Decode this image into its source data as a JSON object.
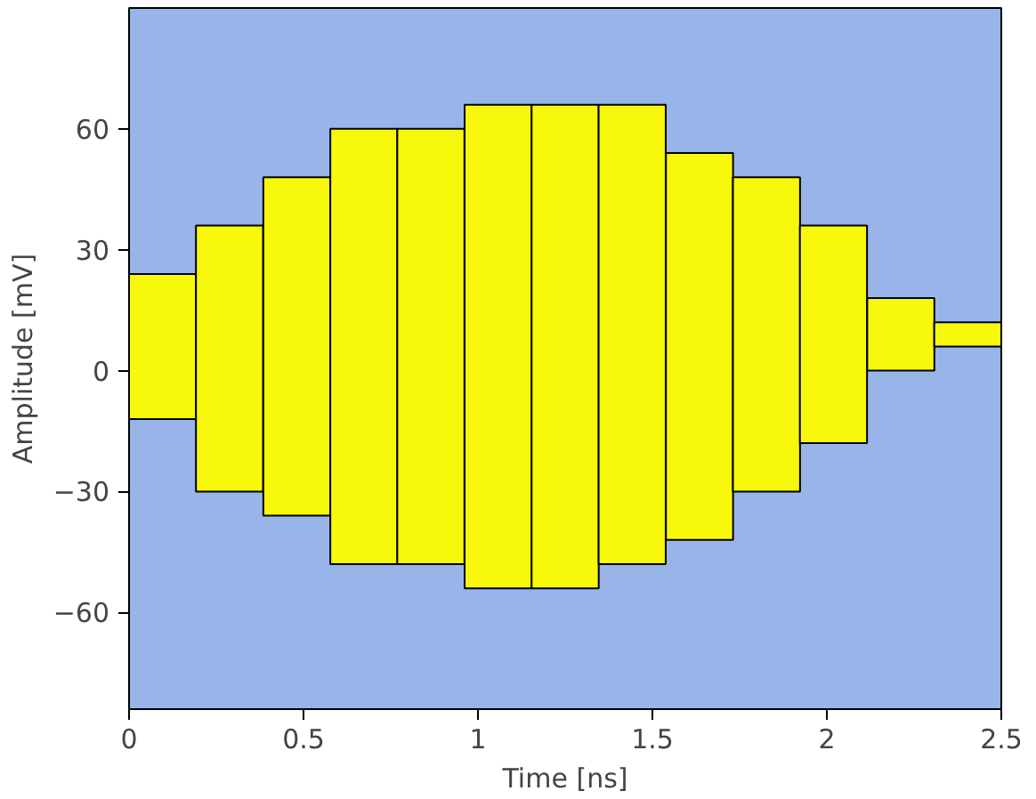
{
  "chart_data": {
    "type": "bar",
    "xlabel": "Time [ns]",
    "ylabel": "Amplitude [mV]",
    "x": [
      0.096,
      0.288,
      0.481,
      0.673,
      0.865,
      1.058,
      1.25,
      1.442,
      1.635,
      1.827,
      2.019,
      2.212,
      2.404
    ],
    "base": [
      -12,
      -30,
      -36,
      -48,
      -48,
      -54,
      -54,
      -48,
      -42,
      -30,
      -18,
      0,
      6
    ],
    "values": [
      36,
      66,
      84,
      108,
      108,
      120,
      120,
      114,
      96,
      78,
      54,
      18,
      6
    ],
    "color": "#f8f80a",
    "xlim": [
      0,
      2.5
    ],
    "xticks": [
      0,
      0.5,
      1,
      1.5,
      2,
      2.5
    ],
    "ylim": [
      -84,
      90
    ],
    "yticks": [
      60,
      30,
      0,
      -30,
      -60
    ]
  }
}
